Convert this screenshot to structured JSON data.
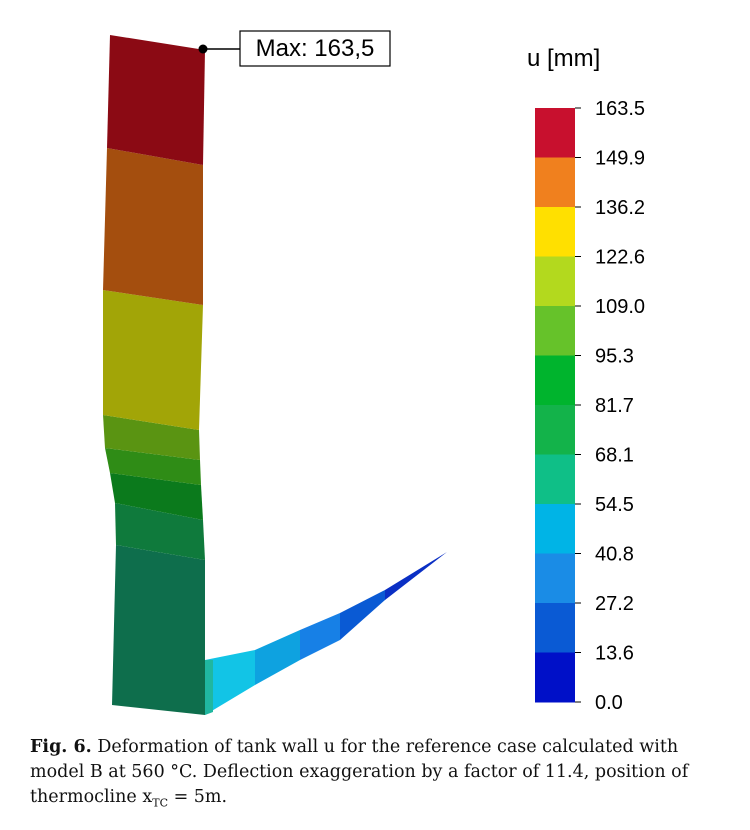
{
  "max_label": "Max: 163,5",
  "colorbar": {
    "title": "u [mm]",
    "ticks": [
      "163.5",
      "149.9",
      "136.2",
      "122.6",
      "109.0",
      "95.3",
      "81.7",
      "68.1",
      "54.5",
      "40.8",
      "27.2",
      "13.6",
      "0.0"
    ],
    "colors": [
      "#c8102e",
      "#f0801e",
      "#ffe000",
      "#b3d91e",
      "#66c22a",
      "#00b42d",
      "#13b34a",
      "#0fbf87",
      "#00b4e6",
      "#1a8ce6",
      "#0a5ad4",
      "#0010c8"
    ]
  },
  "caption": {
    "label": "Fig. 6.",
    "text": "Deformation of tank wall u for the reference case calculated with model B at 560 °C. Deflection exaggeration by a factor of 11.4, position of thermocline",
    "x_var": "x",
    "x_sub": "TC",
    "x_value": " = 5m."
  }
}
